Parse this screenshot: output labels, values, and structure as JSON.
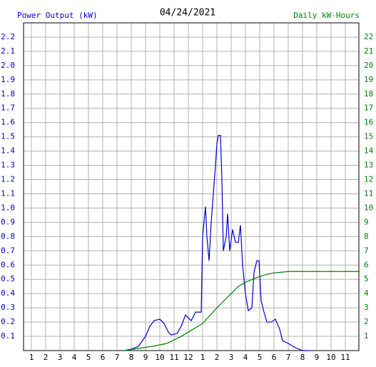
{
  "chart_data": {
    "type": "line",
    "title": "04/24/2021",
    "y_label": "Power Output (kW)",
    "y2_label": "Daily kW-Hours",
    "grid": true,
    "xlim": [
      0.45,
      23.95
    ],
    "xticks": [
      1,
      2,
      3,
      4,
      5,
      6,
      7,
      8,
      9,
      10,
      11,
      12,
      {
        "value": 13,
        "label": "1"
      },
      {
        "value": 14,
        "label": "2"
      },
      {
        "value": 15,
        "label": "3"
      },
      {
        "value": 16,
        "label": "4"
      },
      {
        "value": 17,
        "label": "5"
      },
      {
        "value": 18,
        "label": "6"
      },
      {
        "value": 19,
        "label": "7"
      },
      {
        "value": 20,
        "label": "8"
      },
      {
        "value": 21,
        "label": "9"
      },
      {
        "value": 22,
        "label": "10"
      },
      {
        "value": 23,
        "label": "11"
      }
    ],
    "ylim": [
      0,
      2.3
    ],
    "yticks": [
      0.1,
      0.2,
      0.3,
      0.4,
      0.5,
      0.6,
      0.7,
      0.8,
      0.9,
      {
        "value": 1,
        "label": "1.0"
      },
      1.1,
      1.2,
      1.3,
      1.4,
      1.5,
      1.6,
      1.7,
      1.8,
      1.9,
      {
        "value": 2,
        "label": "2.0"
      },
      2.1,
      2.2
    ],
    "y2lim": [
      0,
      23
    ],
    "y2ticks": [
      1,
      2,
      3,
      4,
      5,
      6,
      7,
      8,
      9,
      10,
      11,
      12,
      13,
      14,
      15,
      16,
      17,
      18,
      19,
      20,
      21,
      22
    ],
    "y_color": "#0000cc",
    "y2_color": "#008000",
    "series": [
      {
        "name": "Power Output (kW)",
        "color": "#0000cc",
        "axis": "y",
        "x": [
          7.5,
          8,
          8.5,
          9,
          9.3,
          9.6,
          10,
          10.3,
          10.6,
          10.8,
          11.2,
          11.5,
          11.8,
          12,
          12.2,
          12.5,
          12.9,
          13,
          13.2,
          13.3,
          13.45,
          13.6,
          13.75,
          13.9,
          14,
          14.1,
          14.25,
          14.35,
          14.45,
          14.65,
          14.75,
          14.9,
          15.1,
          15.3,
          15.5,
          15.65,
          15.8,
          16,
          16.2,
          16.45,
          16.6,
          16.8,
          16.95,
          17.1,
          17.3,
          17.5,
          17.8,
          18.1,
          18.4,
          18.6,
          19,
          19.5,
          20,
          20.5
        ],
        "values": [
          0,
          0.01,
          0.03,
          0.1,
          0.17,
          0.21,
          0.22,
          0.19,
          0.13,
          0.11,
          0.12,
          0.17,
          0.25,
          0.23,
          0.21,
          0.27,
          0.27,
          0.8,
          1.01,
          0.8,
          0.63,
          0.9,
          1.1,
          1.3,
          1.45,
          1.51,
          1.51,
          1.2,
          0.7,
          0.8,
          0.96,
          0.7,
          0.85,
          0.76,
          0.76,
          0.88,
          0.6,
          0.4,
          0.28,
          0.3,
          0.55,
          0.63,
          0.63,
          0.35,
          0.27,
          0.2,
          0.2,
          0.22,
          0.15,
          0.07,
          0.05,
          0.02,
          0,
          0
        ]
      },
      {
        "name": "Daily kW-Hours",
        "color": "#008000",
        "axis": "y2",
        "x": [
          7.5,
          8.5,
          9.5,
          10.5,
          11.5,
          12,
          13,
          14,
          15,
          15.5,
          16,
          16.5,
          17,
          17.5,
          18,
          18.5,
          19,
          20,
          24
        ],
        "values": [
          0,
          0.15,
          0.3,
          0.5,
          1.0,
          1.3,
          1.9,
          3.0,
          4.0,
          4.5,
          4.8,
          5.0,
          5.2,
          5.35,
          5.45,
          5.5,
          5.55,
          5.55,
          5.55
        ]
      }
    ]
  }
}
